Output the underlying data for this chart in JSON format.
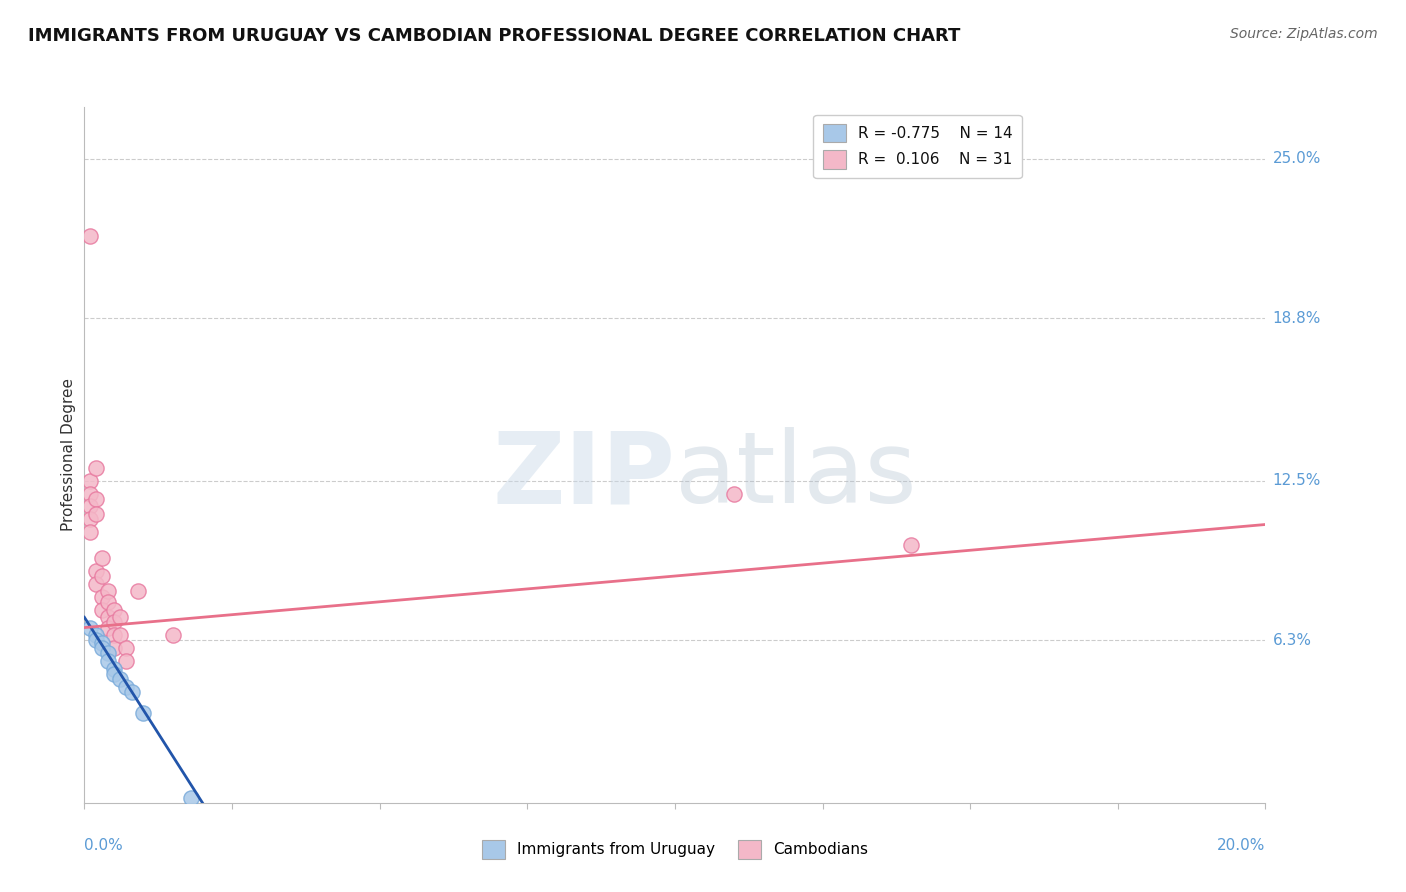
{
  "title": "IMMIGRANTS FROM URUGUAY VS CAMBODIAN PROFESSIONAL DEGREE CORRELATION CHART",
  "source": "Source: ZipAtlas.com",
  "ylabel": "Professional Degree",
  "ytick_labels": [
    "6.3%",
    "12.5%",
    "18.8%",
    "25.0%"
  ],
  "ytick_values": [
    0.063,
    0.125,
    0.188,
    0.25
  ],
  "xlim": [
    0.0,
    0.2
  ],
  "ylim": [
    0.0,
    0.27
  ],
  "legend_entries": [
    {
      "label_r": "R = -0.775",
      "label_n": "N = 14",
      "color": "#a8c8e8"
    },
    {
      "label_r": "R =  0.106",
      "label_n": "N = 31",
      "color": "#f4b8c8"
    }
  ],
  "legend_bottom": [
    {
      "label": "Immigrants from Uruguay",
      "color": "#a8c8e8"
    },
    {
      "label": "Cambodians",
      "color": "#f4b8c8"
    }
  ],
  "watermark": "ZIPatlas",
  "blue_scatter": [
    [
      0.001,
      0.068
    ],
    [
      0.002,
      0.065
    ],
    [
      0.002,
      0.063
    ],
    [
      0.003,
      0.062
    ],
    [
      0.003,
      0.06
    ],
    [
      0.004,
      0.058
    ],
    [
      0.004,
      0.055
    ],
    [
      0.005,
      0.052
    ],
    [
      0.005,
      0.05
    ],
    [
      0.006,
      0.048
    ],
    [
      0.007,
      0.045
    ],
    [
      0.008,
      0.043
    ],
    [
      0.01,
      0.035
    ],
    [
      0.018,
      0.002
    ]
  ],
  "pink_scatter": [
    [
      0.001,
      0.22
    ],
    [
      0.001,
      0.125
    ],
    [
      0.001,
      0.12
    ],
    [
      0.001,
      0.115
    ],
    [
      0.001,
      0.11
    ],
    [
      0.001,
      0.105
    ],
    [
      0.002,
      0.13
    ],
    [
      0.002,
      0.118
    ],
    [
      0.002,
      0.112
    ],
    [
      0.002,
      0.09
    ],
    [
      0.002,
      0.085
    ],
    [
      0.003,
      0.095
    ],
    [
      0.003,
      0.088
    ],
    [
      0.003,
      0.08
    ],
    [
      0.003,
      0.075
    ],
    [
      0.004,
      0.082
    ],
    [
      0.004,
      0.078
    ],
    [
      0.004,
      0.072
    ],
    [
      0.004,
      0.068
    ],
    [
      0.005,
      0.075
    ],
    [
      0.005,
      0.07
    ],
    [
      0.005,
      0.065
    ],
    [
      0.005,
      0.06
    ],
    [
      0.006,
      0.072
    ],
    [
      0.006,
      0.065
    ],
    [
      0.007,
      0.06
    ],
    [
      0.007,
      0.055
    ],
    [
      0.009,
      0.082
    ],
    [
      0.015,
      0.065
    ],
    [
      0.11,
      0.12
    ],
    [
      0.14,
      0.1
    ]
  ],
  "blue_line_x": [
    0.0,
    0.02
  ],
  "blue_line_y": [
    0.072,
    0.0
  ],
  "pink_line_x": [
    0.0,
    0.2
  ],
  "pink_line_y": [
    0.068,
    0.108
  ],
  "title_fontsize": 13,
  "source_fontsize": 10,
  "scatter_size": 120,
  "blue_color": "#a8c8e8",
  "pink_color": "#f4b8c8",
  "blue_edge_color": "#7aabda",
  "pink_edge_color": "#e87aa0",
  "blue_line_color": "#2255aa",
  "pink_line_color": "#e8708a",
  "grid_color": "#cccccc",
  "axis_color": "#bbbbbb",
  "right_label_color": "#5b9bd5",
  "background_color": "#ffffff"
}
